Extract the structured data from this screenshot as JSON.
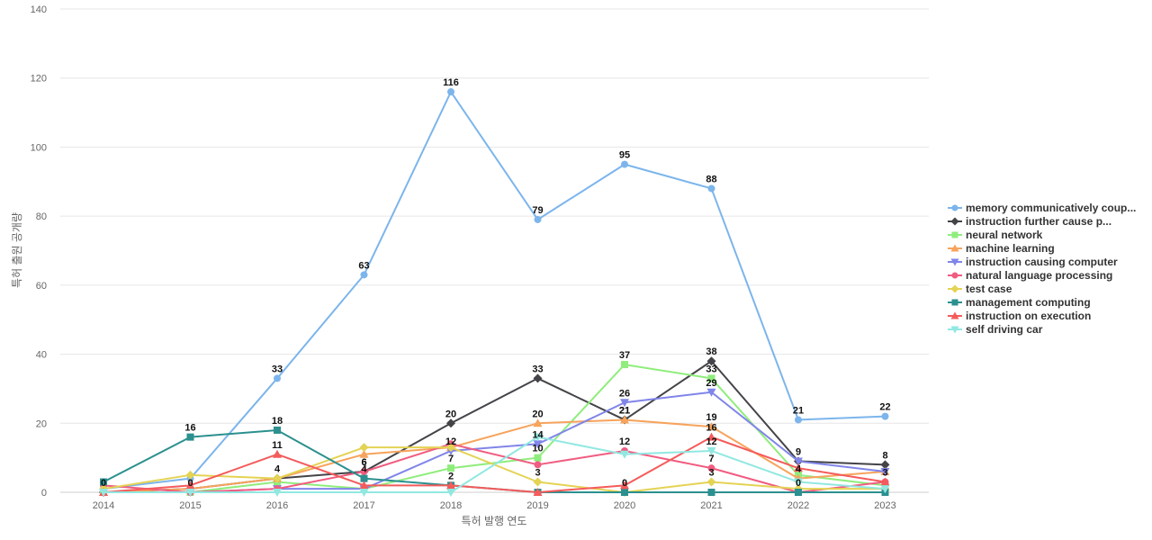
{
  "chart_data": {
    "type": "line",
    "title": "",
    "xlabel": "특허 발행 연도",
    "ylabel": "특허 출원 공개량",
    "x": [
      "2014",
      "2015",
      "2016",
      "2017",
      "2018",
      "2019",
      "2020",
      "2021",
      "2022",
      "2023"
    ],
    "ylim": [
      0,
      140
    ],
    "yticks": [
      0,
      20,
      40,
      60,
      80,
      100,
      120,
      140
    ],
    "grid": true,
    "legend_position": "right",
    "series": [
      {
        "name": "memory communicatively coup...",
        "color": "#7cb5ec",
        "marker": "circle",
        "values": [
          1,
          4,
          33,
          63,
          116,
          79,
          95,
          88,
          21,
          22
        ],
        "labels": [
          false,
          false,
          true,
          true,
          true,
          true,
          true,
          true,
          true,
          true
        ]
      },
      {
        "name": "instruction further cause p...",
        "color": "#434348",
        "marker": "diamond",
        "values": [
          0,
          1,
          4,
          6,
          20,
          33,
          21,
          38,
          9,
          8
        ],
        "labels": [
          true,
          false,
          true,
          true,
          true,
          true,
          true,
          true,
          true,
          true
        ]
      },
      {
        "name": "neural network",
        "color": "#90ed7d",
        "marker": "square",
        "values": [
          0,
          0,
          3,
          1,
          7,
          10,
          37,
          33,
          5,
          2
        ],
        "labels": [
          false,
          false,
          false,
          false,
          true,
          true,
          true,
          true,
          false,
          false
        ]
      },
      {
        "name": "machine learning",
        "color": "#f7a35c",
        "marker": "triangle",
        "values": [
          0,
          1,
          4,
          11,
          13,
          20,
          21,
          19,
          4,
          6
        ],
        "labels": [
          false,
          false,
          false,
          false,
          false,
          true,
          true,
          true,
          true,
          false
        ]
      },
      {
        "name": "instruction causing computer",
        "color": "#8085e9",
        "marker": "triangle-down",
        "values": [
          0,
          0,
          1,
          1,
          12,
          14,
          26,
          29,
          9,
          6
        ],
        "labels": [
          false,
          false,
          false,
          false,
          true,
          true,
          true,
          true,
          false,
          false
        ]
      },
      {
        "name": "natural language processing",
        "color": "#f15c80",
        "marker": "circle",
        "values": [
          2,
          0,
          1,
          6,
          14,
          8,
          12,
          7,
          0,
          3
        ],
        "labels": [
          false,
          true,
          false,
          true,
          false,
          false,
          true,
          true,
          false,
          true
        ]
      },
      {
        "name": "test case",
        "color": "#e4d354",
        "marker": "diamond",
        "values": [
          1,
          5,
          4,
          13,
          13,
          3,
          0,
          3,
          1,
          1
        ],
        "labels": [
          false,
          false,
          false,
          false,
          false,
          true,
          false,
          true,
          false,
          false
        ]
      },
      {
        "name": "management computing",
        "color": "#2b908f",
        "marker": "square",
        "values": [
          3,
          16,
          18,
          4,
          2,
          0,
          0,
          0,
          0,
          0
        ],
        "labels": [
          false,
          true,
          true,
          true,
          false,
          false,
          true,
          false,
          true,
          false
        ]
      },
      {
        "name": "instruction on execution",
        "color": "#f45b5b",
        "marker": "triangle",
        "values": [
          0,
          2,
          11,
          2,
          2,
          0,
          2,
          16,
          7,
          3
        ],
        "labels": [
          false,
          false,
          true,
          false,
          true,
          false,
          false,
          true,
          false,
          false
        ]
      },
      {
        "name": "self driving car",
        "color": "#91e8e1",
        "marker": "triangle-down",
        "values": [
          0,
          0,
          0,
          0,
          0,
          16,
          11,
          12,
          3,
          1
        ],
        "labels": [
          false,
          false,
          false,
          false,
          false,
          false,
          false,
          true,
          false,
          false
        ]
      }
    ]
  }
}
